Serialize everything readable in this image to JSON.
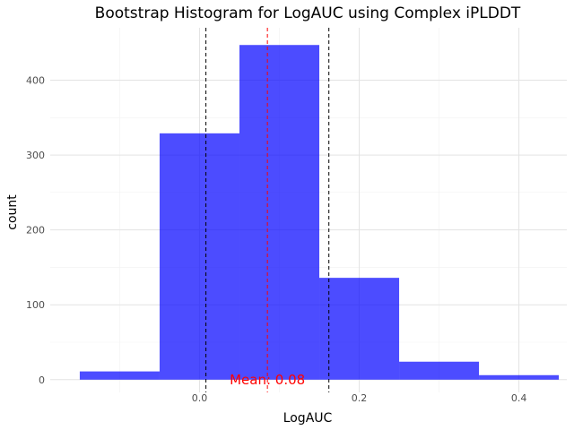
{
  "chart_data": {
    "type": "bar",
    "subtype": "histogram",
    "title": "Bootstrap Histogram for LogAUC using Complex iPLDDT",
    "xlabel": "LogAUC",
    "ylabel": "count",
    "xlim": [
      -0.187,
      0.46
    ],
    "ylim": [
      -17,
      470
    ],
    "x_ticks": [
      0.0,
      0.2,
      0.4
    ],
    "x_tick_labels": [
      "0.0",
      "0.2",
      "0.4"
    ],
    "y_ticks": [
      0,
      100,
      200,
      300,
      400
    ],
    "y_tick_labels": [
      "0",
      "100",
      "200",
      "300",
      "400"
    ],
    "bins": [
      {
        "start": -0.15,
        "end": -0.05,
        "count": 11
      },
      {
        "start": -0.05,
        "end": 0.05,
        "count": 329
      },
      {
        "start": 0.05,
        "end": 0.15,
        "count": 447
      },
      {
        "start": 0.15,
        "end": 0.25,
        "count": 136
      },
      {
        "start": 0.25,
        "end": 0.35,
        "count": 24
      },
      {
        "start": 0.35,
        "end": 0.45,
        "count": 6
      }
    ],
    "vlines": [
      {
        "name": "ci-lower",
        "x": 0.008,
        "color": "#000000",
        "dash": "dashed"
      },
      {
        "name": "mean",
        "x": 0.085,
        "color": "#ff0000",
        "dash": "dashed"
      },
      {
        "name": "ci-upper",
        "x": 0.162,
        "color": "#000000",
        "dash": "dashed"
      }
    ],
    "annotation": {
      "text": "Mean: 0.08",
      "x": 0.085,
      "y": 0,
      "color": "#ff0000"
    },
    "bar_color": "#0000ff",
    "bar_opacity": 0.7,
    "grid": true
  }
}
